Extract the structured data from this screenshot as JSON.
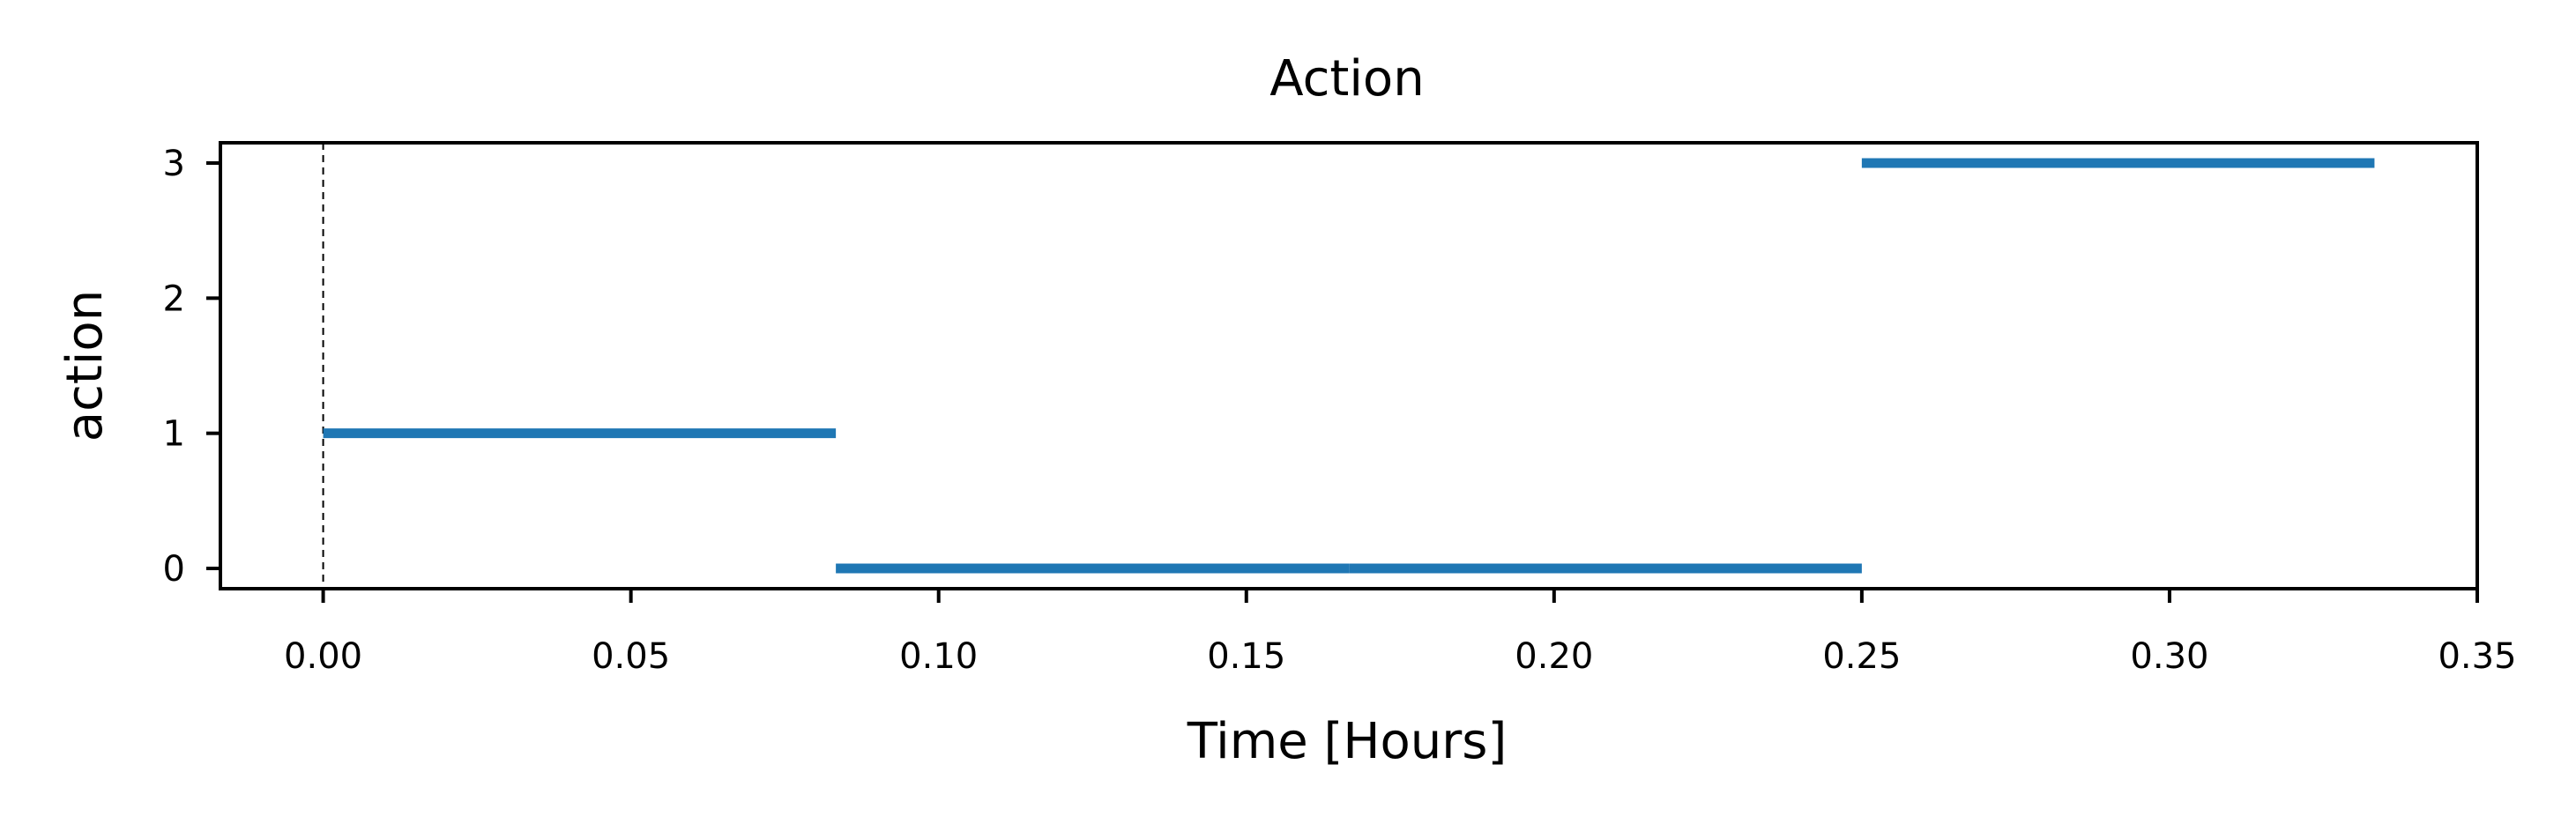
{
  "chart_data": {
    "type": "line",
    "title": "Action",
    "xlabel": "Time [Hours]",
    "ylabel": "action",
    "xlim": [
      -0.0167,
      0.35
    ],
    "ylim": [
      -0.15,
      3.15
    ],
    "xticks": [
      0.0,
      0.05,
      0.1,
      0.15,
      0.2,
      0.25,
      0.3,
      0.35
    ],
    "xtick_labels": [
      "0.00",
      "0.05",
      "0.10",
      "0.15",
      "0.20",
      "0.25",
      "0.30",
      "0.35"
    ],
    "yticks": [
      0,
      1,
      2,
      3
    ],
    "ytick_labels": [
      "0",
      "1",
      "2",
      "3"
    ],
    "grid": false,
    "vline": {
      "x": 0.0,
      "style": "dashed",
      "color": "#000000"
    },
    "series": [
      {
        "color": "#1f77b4",
        "segments": [
          {
            "x": [
              0.0,
              0.0833
            ],
            "y": [
              1,
              1
            ]
          },
          {
            "x": [
              0.0833,
              0.1667
            ],
            "y": [
              0,
              0
            ]
          },
          {
            "x": [
              0.1667,
              0.25
            ],
            "y": [
              0,
              0
            ]
          },
          {
            "x": [
              0.25,
              0.3333
            ],
            "y": [
              3,
              3
            ]
          }
        ]
      }
    ]
  }
}
